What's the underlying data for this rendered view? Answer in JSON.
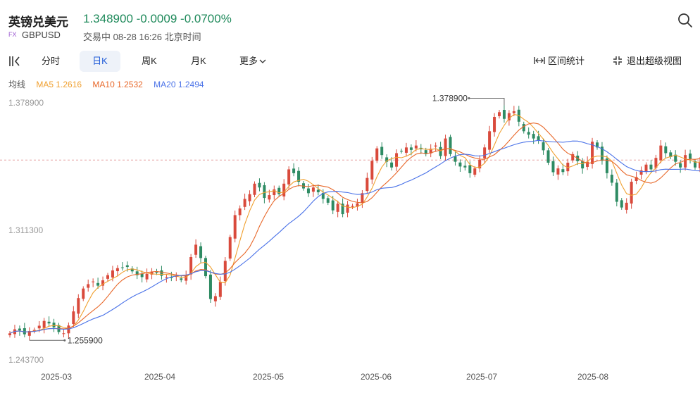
{
  "header": {
    "title": "英镑兑美元",
    "price": "1.348900",
    "change": "-0.0009",
    "change_pct": "-0.0700%",
    "badge": "FX",
    "code": "GBPUSD",
    "status": "交易中 08-28 16:26 北京时间",
    "price_color": "#1f8a5b"
  },
  "toolbar": {
    "tabs": [
      "分时",
      "日K",
      "周K",
      "月K",
      "更多"
    ],
    "active_tab": "日K",
    "range_stats": "区间统计",
    "exit_fullscreen": "退出超级视图"
  },
  "ma_legend": {
    "label": "均线",
    "ma5": "MA5 1.2616",
    "ma10": "MA10 1.2532",
    "ma20": "MA20 1.2494",
    "ma5_color": "#f0a030",
    "ma10_color": "#e8682a",
    "ma20_color": "#4a72e8"
  },
  "chart_data": {
    "type": "candlestick",
    "y_ticks": [
      "1.378900",
      "1.311300",
      "1.243700"
    ],
    "x_ticks": [
      "2025-03",
      "2025-04",
      "2025-05",
      "2025-06",
      "2025-07",
      "2025-08"
    ],
    "max_label": "1.378900",
    "min_label": "1.255900",
    "ylim": [
      1.2437,
      1.3789
    ],
    "reference_price": 1.3489,
    "up_color": "#d94a3c",
    "down_color": "#2e8b63",
    "closes": [
      1.258,
      1.2601,
      1.2595,
      1.2575,
      1.2592,
      1.2598,
      1.262,
      1.2645,
      1.2632,
      1.2611,
      1.2587,
      1.258,
      1.2621,
      1.2695,
      1.2765,
      1.2815,
      1.2838,
      1.2852,
      1.283,
      1.2858,
      1.2885,
      1.291,
      1.2922,
      1.2925,
      1.2928,
      1.2905,
      1.2885,
      1.2875,
      1.2892,
      1.2902,
      1.2898,
      1.2882,
      1.2875,
      1.287,
      1.288,
      1.286,
      1.2885,
      1.298,
      1.3045,
      1.2975,
      1.288,
      1.276,
      1.2775,
      1.285,
      1.296,
      1.3085,
      1.32,
      1.3235,
      1.3285,
      1.331,
      1.3365,
      1.3345,
      1.329,
      1.3305,
      1.3335,
      1.331,
      1.3365,
      1.344,
      1.342,
      1.3375,
      1.334,
      1.3315,
      1.3345,
      1.332,
      1.3285,
      1.3265,
      1.3225,
      1.326,
      1.3205,
      1.3255,
      1.3248,
      1.3262,
      1.3315,
      1.3395,
      1.3485,
      1.355,
      1.3515,
      1.348,
      1.345,
      1.3525,
      1.3535,
      1.3555,
      1.3542,
      1.3565,
      1.3545,
      1.352,
      1.3548,
      1.3565,
      1.351,
      1.3602,
      1.352,
      1.348,
      1.3455,
      1.345,
      1.342,
      1.3445,
      1.349,
      1.3555,
      1.364,
      1.3715,
      1.374,
      1.3705,
      1.3735,
      1.3745,
      1.369,
      1.364,
      1.3622,
      1.3602,
      1.359,
      1.354,
      1.3475,
      1.3425,
      1.3445,
      1.3426,
      1.3475,
      1.352,
      1.3483,
      1.3445,
      1.348,
      1.3585,
      1.3555,
      1.3485,
      1.342,
      1.337,
      1.327,
      1.324,
      1.3265,
      1.3375,
      1.34,
      1.3435,
      1.3465,
      1.344,
      1.35,
      1.3565,
      1.3525,
      1.3505,
      1.348,
      1.345,
      1.3515,
      1.3495,
      1.345,
      1.348,
      1.3495,
      1.3489
    ]
  }
}
